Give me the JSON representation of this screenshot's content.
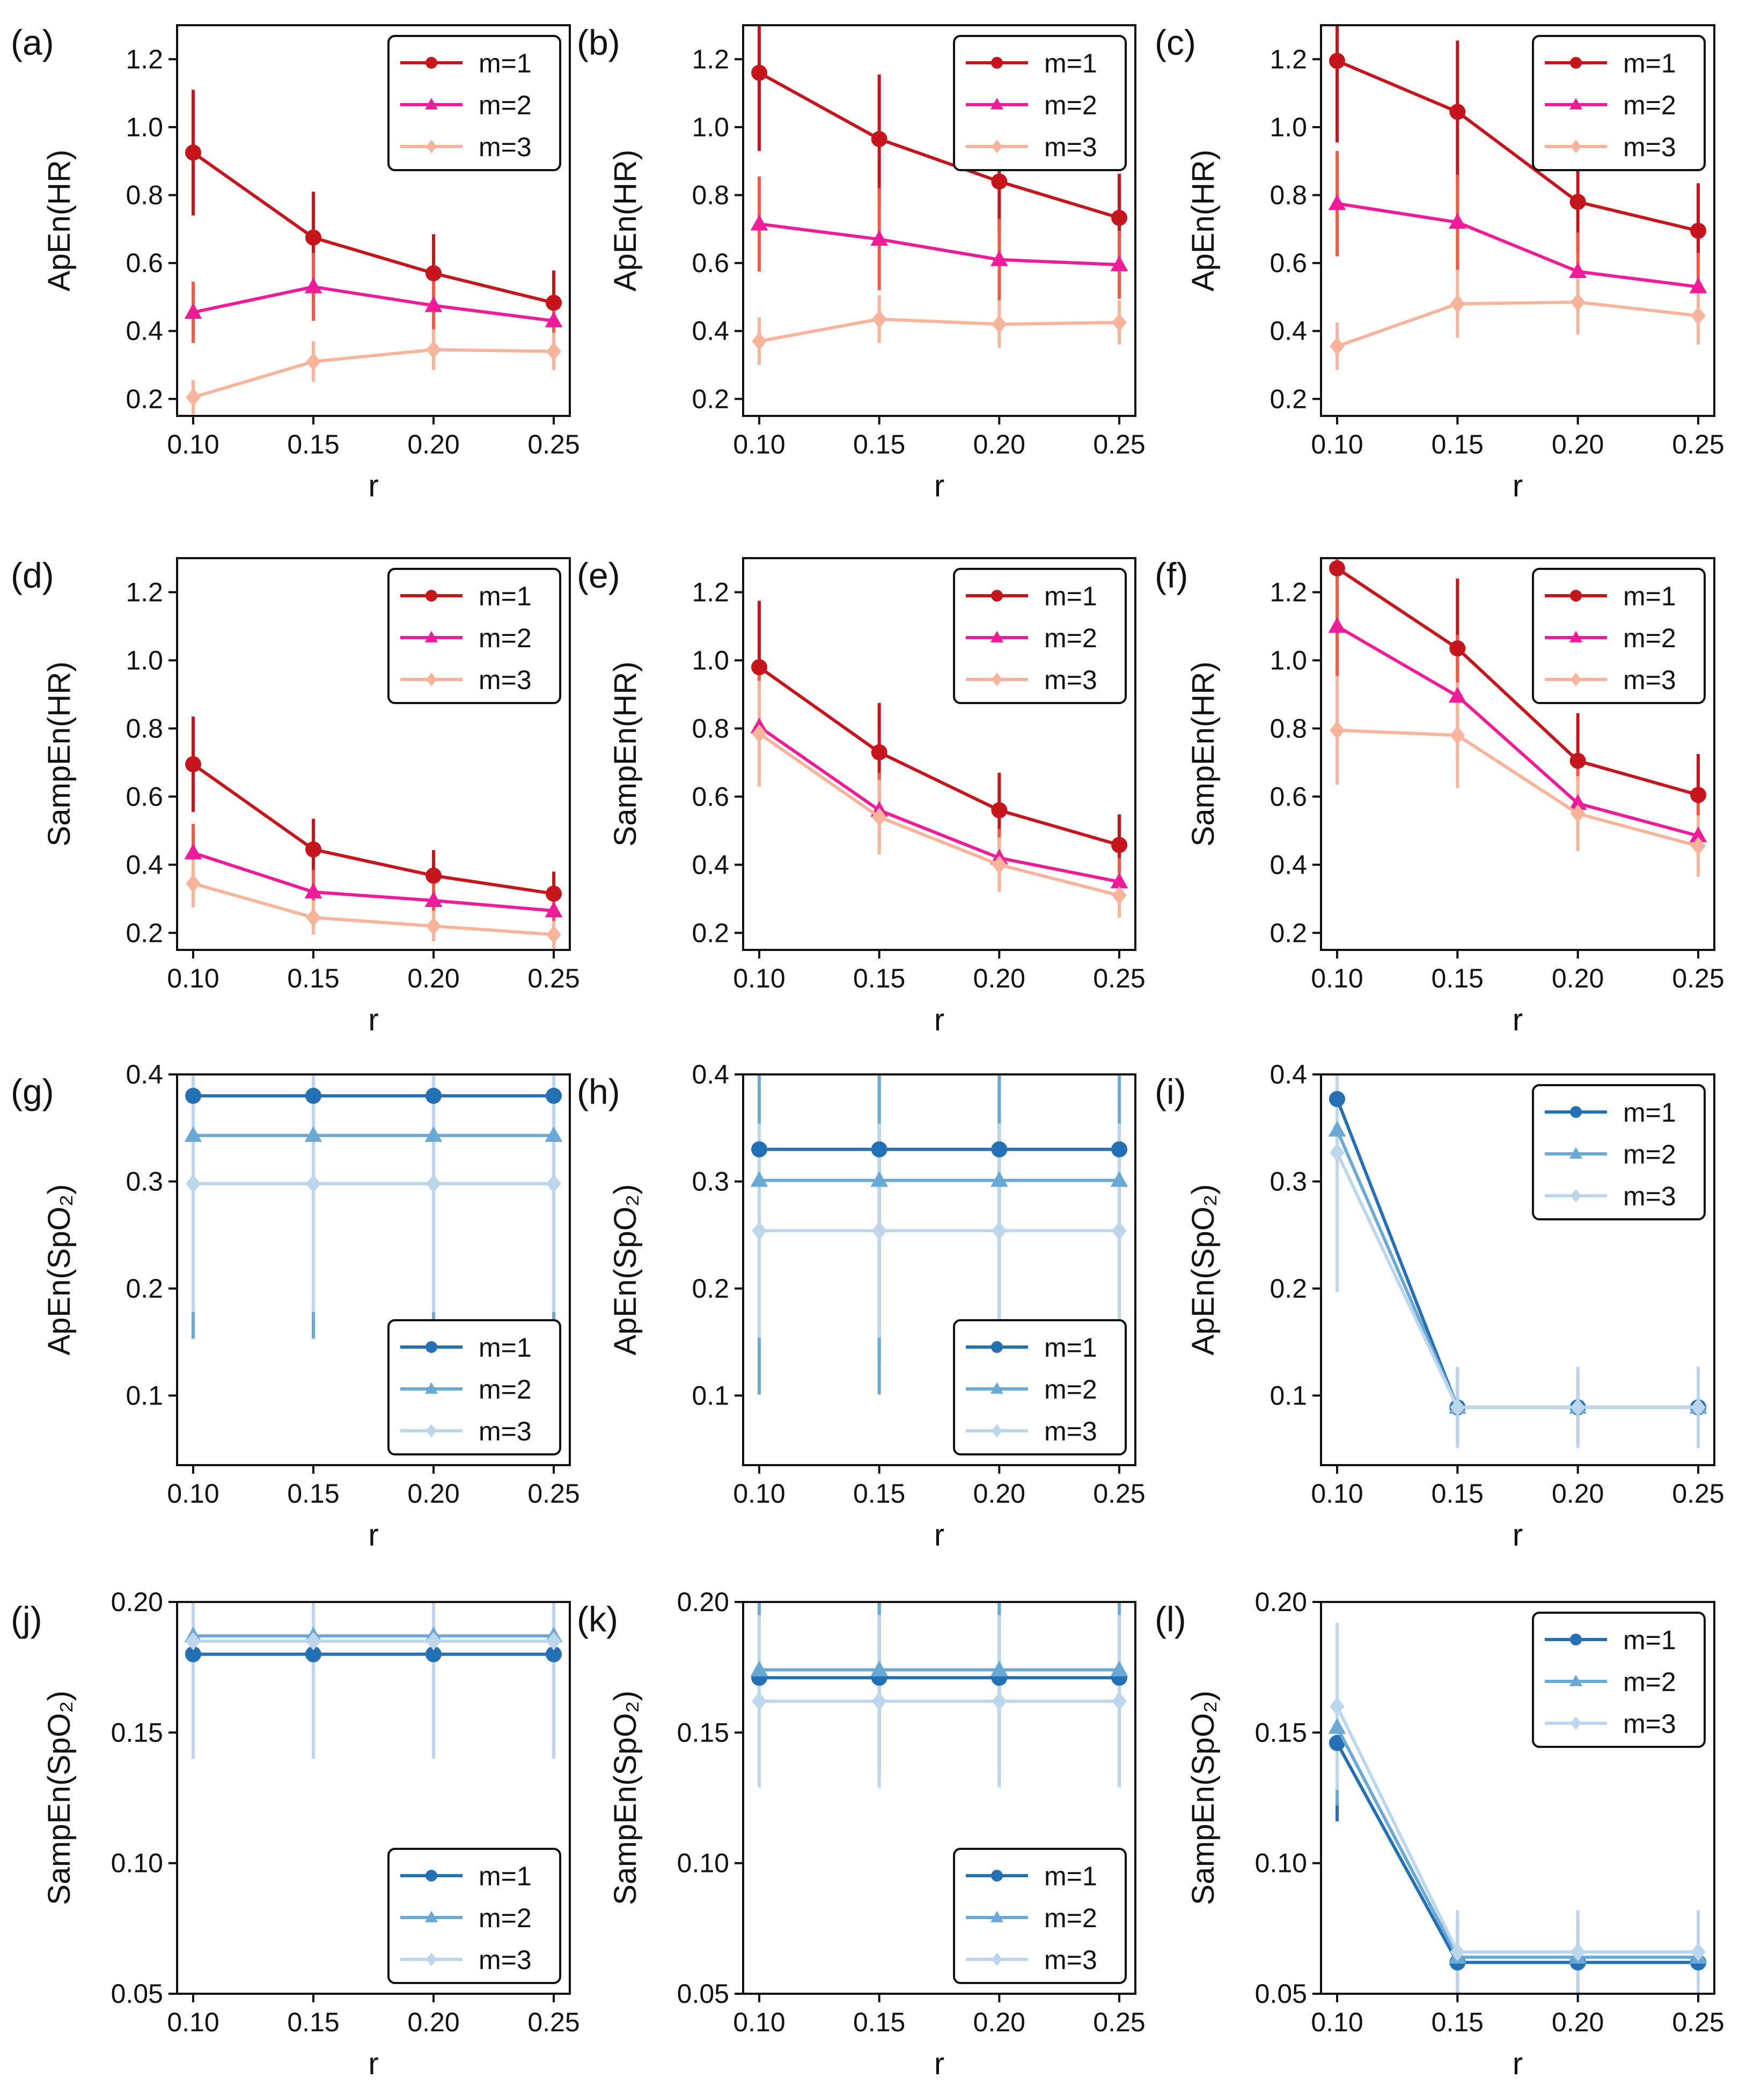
{
  "figure": {
    "colors": {
      "red_m1": "#c4161c",
      "red_m2": "#f01b98",
      "red_m3": "#f8b49b",
      "red_err2": "#f5593f",
      "blue_m1": "#2470b5",
      "blue_m2": "#6aa8d6",
      "blue_m3": "#bcd6ec"
    }
  },
  "chart_data": [
    {
      "id": "a",
      "label": "(a)",
      "type": "line",
      "ylabel": "ApEn(HR)",
      "xlabel": "r",
      "palette": "red",
      "x": [
        0.1,
        0.15,
        0.2,
        0.25
      ],
      "xticks": [
        "0.10",
        "0.15",
        "0.20",
        "0.25"
      ],
      "ylim": [
        0.15,
        1.3
      ],
      "yticks": [
        0.2,
        0.4,
        0.6,
        0.8,
        1.0,
        1.2
      ],
      "yticklabels": [
        "0.2",
        "0.4",
        "0.6",
        "0.8",
        "1.0",
        "1.2"
      ],
      "legend": "top-right",
      "series": [
        {
          "name": "m=1",
          "values": [
            0.925,
            0.675,
            0.57,
            0.483
          ],
          "err": [
            0.185,
            0.135,
            0.115,
            0.095
          ]
        },
        {
          "name": "m=2",
          "values": [
            0.455,
            0.53,
            0.475,
            0.43
          ],
          "err": [
            0.09,
            0.1,
            0.09,
            0.07
          ]
        },
        {
          "name": "m=3",
          "values": [
            0.205,
            0.31,
            0.345,
            0.34
          ],
          "err": [
            0.05,
            0.06,
            0.06,
            0.055
          ]
        }
      ]
    },
    {
      "id": "b",
      "label": "(b)",
      "type": "line",
      "ylabel": "ApEn(HR)",
      "xlabel": "r",
      "palette": "red",
      "x": [
        0.1,
        0.15,
        0.2,
        0.25
      ],
      "xticks": [
        "0.10",
        "0.15",
        "0.20",
        "0.25"
      ],
      "ylim": [
        0.15,
        1.3
      ],
      "yticks": [
        0.2,
        0.4,
        0.6,
        0.8,
        1.0,
        1.2
      ],
      "yticklabels": [
        "0.2",
        "0.4",
        "0.6",
        "0.8",
        "1.0",
        "1.2"
      ],
      "legend": "top-right",
      "series": [
        {
          "name": "m=1",
          "values": [
            1.16,
            0.965,
            0.84,
            0.733
          ],
          "err": [
            0.23,
            0.19,
            0.16,
            0.13
          ]
        },
        {
          "name": "m=2",
          "values": [
            0.715,
            0.67,
            0.61,
            0.595
          ],
          "err": [
            0.14,
            0.15,
            0.12,
            0.1
          ]
        },
        {
          "name": "m=3",
          "values": [
            0.37,
            0.435,
            0.42,
            0.425
          ],
          "err": [
            0.07,
            0.07,
            0.07,
            0.065
          ]
        }
      ]
    },
    {
      "id": "c",
      "label": "(c)",
      "type": "line",
      "ylabel": "ApEn(HR)",
      "xlabel": "r",
      "palette": "red",
      "x": [
        0.1,
        0.15,
        0.2,
        0.25
      ],
      "xticks": [
        "0.10",
        "0.15",
        "0.20",
        "0.25"
      ],
      "ylim": [
        0.15,
        1.3
      ],
      "yticks": [
        0.2,
        0.4,
        0.6,
        0.8,
        1.0,
        1.2
      ],
      "yticklabels": [
        "0.2",
        "0.4",
        "0.6",
        "0.8",
        "1.0",
        "1.2"
      ],
      "legend": "top-right",
      "series": [
        {
          "name": "m=1",
          "values": [
            1.195,
            1.045,
            0.78,
            0.695
          ],
          "err": [
            0.24,
            0.21,
            0.15,
            0.14
          ]
        },
        {
          "name": "m=2",
          "values": [
            0.775,
            0.72,
            0.575,
            0.53
          ],
          "err": [
            0.155,
            0.14,
            0.115,
            0.1
          ]
        },
        {
          "name": "m=3",
          "values": [
            0.355,
            0.48,
            0.485,
            0.445
          ],
          "err": [
            0.07,
            0.1,
            0.095,
            0.085
          ]
        }
      ]
    },
    {
      "id": "d",
      "label": "(d)",
      "type": "line",
      "ylabel": "SampEn(HR)",
      "xlabel": "r",
      "palette": "red",
      "x": [
        0.1,
        0.15,
        0.2,
        0.25
      ],
      "xticks": [
        "0.10",
        "0.15",
        "0.20",
        "0.25"
      ],
      "ylim": [
        0.15,
        1.3
      ],
      "yticks": [
        0.2,
        0.4,
        0.6,
        0.8,
        1.0,
        1.2
      ],
      "yticklabels": [
        "0.2",
        "0.4",
        "0.6",
        "0.8",
        "1.0",
        "1.2"
      ],
      "legend": "top-right",
      "series": [
        {
          "name": "m=1",
          "values": [
            0.695,
            0.445,
            0.368,
            0.315
          ],
          "err": [
            0.14,
            0.09,
            0.075,
            0.065
          ]
        },
        {
          "name": "m=2",
          "values": [
            0.435,
            0.32,
            0.295,
            0.265
          ],
          "err": [
            0.085,
            0.065,
            0.06,
            0.05
          ]
        },
        {
          "name": "m=3",
          "values": [
            0.345,
            0.245,
            0.22,
            0.195
          ],
          "err": [
            0.07,
            0.05,
            0.045,
            0.04
          ]
        }
      ]
    },
    {
      "id": "e",
      "label": "(e)",
      "type": "line",
      "ylabel": "SampEn(HR)",
      "xlabel": "r",
      "palette": "red",
      "x": [
        0.1,
        0.15,
        0.2,
        0.25
      ],
      "xticks": [
        "0.10",
        "0.15",
        "0.20",
        "0.25"
      ],
      "ylim": [
        0.15,
        1.3
      ],
      "yticks": [
        0.2,
        0.4,
        0.6,
        0.8,
        1.0,
        1.2
      ],
      "yticklabels": [
        "0.2",
        "0.4",
        "0.6",
        "0.8",
        "1.0",
        "1.2"
      ],
      "legend": "top-right",
      "series": [
        {
          "name": "m=1",
          "values": [
            0.98,
            0.73,
            0.56,
            0.458
          ],
          "err": [
            0.195,
            0.145,
            0.11,
            0.09
          ]
        },
        {
          "name": "m=2",
          "values": [
            0.805,
            0.56,
            0.42,
            0.35
          ],
          "err": [
            0.16,
            0.11,
            0.085,
            0.07
          ]
        },
        {
          "name": "m=3",
          "values": [
            0.785,
            0.54,
            0.4,
            0.31
          ],
          "err": [
            0.155,
            0.11,
            0.08,
            0.065
          ]
        }
      ]
    },
    {
      "id": "f",
      "label": "(f)",
      "type": "line",
      "ylabel": "SampEn(HR)",
      "xlabel": "r",
      "palette": "red",
      "x": [
        0.1,
        0.15,
        0.2,
        0.25
      ],
      "xticks": [
        "0.10",
        "0.15",
        "0.20",
        "0.25"
      ],
      "ylim": [
        0.15,
        1.3
      ],
      "yticks": [
        0.2,
        0.4,
        0.6,
        0.8,
        1.0,
        1.2
      ],
      "yticklabels": [
        "0.2",
        "0.4",
        "0.6",
        "0.8",
        "1.0",
        "1.2"
      ],
      "legend": "top-right",
      "series": [
        {
          "name": "m=1",
          "values": [
            1.27,
            1.035,
            0.705,
            0.605
          ],
          "err": [
            0.25,
            0.205,
            0.14,
            0.12
          ]
        },
        {
          "name": "m=2",
          "values": [
            1.1,
            0.895,
            0.58,
            0.485
          ],
          "err": [
            0.22,
            0.18,
            0.115,
            0.095
          ]
        },
        {
          "name": "m=3",
          "values": [
            0.795,
            0.78,
            0.55,
            0.455
          ],
          "err": [
            0.16,
            0.155,
            0.11,
            0.09
          ]
        }
      ]
    },
    {
      "id": "g",
      "label": "(g)",
      "type": "line",
      "ylabel": "ApEn(SpO₂)",
      "xlabel": "r",
      "palette": "blue",
      "x": [
        0.1,
        0.15,
        0.2,
        0.25
      ],
      "xticks": [
        "0.10",
        "0.15",
        "0.20",
        "0.25"
      ],
      "ylim": [
        0.035,
        0.4
      ],
      "yticks": [
        0.1,
        0.2,
        0.3,
        0.4
      ],
      "yticklabels": [
        "0.1",
        "0.2",
        "0.3",
        "0.4"
      ],
      "legend": "bottom-right",
      "series": [
        {
          "name": "m=1",
          "values": [
            0.38,
            0.38,
            0.38,
            0.38
          ],
          "err": [
            0.2,
            0.2,
            0.2,
            0.2
          ]
        },
        {
          "name": "m=2",
          "values": [
            0.343,
            0.343,
            0.343,
            0.343
          ],
          "err": [
            0.19,
            0.19,
            0.19,
            0.19
          ]
        },
        {
          "name": "m=3",
          "values": [
            0.298,
            0.298,
            0.298,
            0.298
          ],
          "err": [
            0.12,
            0.12,
            0.12,
            0.12
          ]
        }
      ]
    },
    {
      "id": "h",
      "label": "(h)",
      "type": "line",
      "ylabel": "ApEn(SpO₂)",
      "xlabel": "r",
      "palette": "blue",
      "x": [
        0.1,
        0.15,
        0.2,
        0.25
      ],
      "xticks": [
        "0.10",
        "0.15",
        "0.20",
        "0.25"
      ],
      "ylim": [
        0.035,
        0.4
      ],
      "yticks": [
        0.1,
        0.2,
        0.3,
        0.4
      ],
      "yticklabels": [
        "0.1",
        "0.2",
        "0.3",
        "0.4"
      ],
      "legend": "bottom-right",
      "series": [
        {
          "name": "m=1",
          "values": [
            0.33,
            0.33,
            0.33,
            0.33
          ],
          "err": [
            0.2,
            0.2,
            0.2,
            0.2
          ]
        },
        {
          "name": "m=2",
          "values": [
            0.301,
            0.301,
            0.301,
            0.301
          ],
          "err": [
            0.2,
            0.2,
            0.2,
            0.2
          ]
        },
        {
          "name": "m=3",
          "values": [
            0.254,
            0.254,
            0.254,
            0.254
          ],
          "err": [
            0.1,
            0.1,
            0.1,
            0.1
          ]
        }
      ]
    },
    {
      "id": "i",
      "label": "(i)",
      "type": "line",
      "ylabel": "ApEn(SpO₂)",
      "xlabel": "r",
      "palette": "blue",
      "x": [
        0.1,
        0.15,
        0.2,
        0.25
      ],
      "xticks": [
        "0.10",
        "0.15",
        "0.20",
        "0.25"
      ],
      "ylim": [
        0.035,
        0.4
      ],
      "yticks": [
        0.1,
        0.2,
        0.3,
        0.4
      ],
      "yticklabels": [
        "0.1",
        "0.2",
        "0.3",
        "0.4"
      ],
      "legend": "top-right",
      "series": [
        {
          "name": "m=1",
          "values": [
            0.377,
            0.089,
            0.089,
            0.089
          ],
          "err": [
            0.07,
            0.035,
            0.035,
            0.035
          ]
        },
        {
          "name": "m=2",
          "values": [
            0.348,
            0.089,
            0.089,
            0.089
          ],
          "err": [
            0.07,
            0.035,
            0.035,
            0.035
          ]
        },
        {
          "name": "m=3",
          "values": [
            0.327,
            0.089,
            0.089,
            0.089
          ],
          "err": [
            0.13,
            0.038,
            0.038,
            0.038
          ]
        }
      ]
    },
    {
      "id": "j",
      "label": "(j)",
      "type": "line",
      "ylabel": "SampEn(SpO₂)",
      "xlabel": "r",
      "palette": "blue",
      "x": [
        0.1,
        0.15,
        0.2,
        0.25
      ],
      "xticks": [
        "0.10",
        "0.15",
        "0.20",
        "0.25"
      ],
      "ylim": [
        0.05,
        0.2
      ],
      "yticks": [
        0.05,
        0.1,
        0.15,
        0.2
      ],
      "yticklabels": [
        "0.05",
        "0.10",
        "0.15",
        "0.20"
      ],
      "legend": "bottom-right",
      "series": [
        {
          "name": "m=1",
          "values": [
            0.18,
            0.18,
            0.18,
            0.18
          ],
          "err": [
            0.035,
            0.035,
            0.035,
            0.035
          ]
        },
        {
          "name": "m=2",
          "values": [
            0.187,
            0.187,
            0.187,
            0.187
          ],
          "err": [
            0.04,
            0.04,
            0.04,
            0.04
          ]
        },
        {
          "name": "m=3",
          "values": [
            0.185,
            0.185,
            0.185,
            0.185
          ],
          "err": [
            0.045,
            0.045,
            0.045,
            0.045
          ]
        }
      ]
    },
    {
      "id": "k",
      "label": "(k)",
      "type": "line",
      "ylabel": "SampEn(SpO₂)",
      "xlabel": "r",
      "palette": "blue",
      "x": [
        0.1,
        0.15,
        0.2,
        0.25
      ],
      "xticks": [
        "0.10",
        "0.15",
        "0.20",
        "0.25"
      ],
      "ylim": [
        0.05,
        0.2
      ],
      "yticks": [
        0.05,
        0.1,
        0.15,
        0.2
      ],
      "yticklabels": [
        "0.05",
        "0.10",
        "0.15",
        "0.20"
      ],
      "legend": "bottom-right",
      "series": [
        {
          "name": "m=1",
          "values": [
            0.171,
            0.171,
            0.171,
            0.171
          ],
          "err": [
            0.035,
            0.035,
            0.035,
            0.035
          ]
        },
        {
          "name": "m=2",
          "values": [
            0.174,
            0.174,
            0.174,
            0.174
          ],
          "err": [
            0.04,
            0.04,
            0.04,
            0.04
          ]
        },
        {
          "name": "m=3",
          "values": [
            0.162,
            0.162,
            0.162,
            0.162
          ],
          "err": [
            0.033,
            0.033,
            0.033,
            0.033
          ]
        }
      ]
    },
    {
      "id": "l",
      "label": "(l)",
      "type": "line",
      "ylabel": "SampEn(SpO₂)",
      "xlabel": "r",
      "palette": "blue",
      "x": [
        0.1,
        0.15,
        0.2,
        0.25
      ],
      "xticks": [
        "0.10",
        "0.15",
        "0.20",
        "0.25"
      ],
      "ylim": [
        0.05,
        0.2
      ],
      "yticks": [
        0.05,
        0.1,
        0.15,
        0.2
      ],
      "yticklabels": [
        "0.05",
        "0.10",
        "0.15",
        "0.20"
      ],
      "legend": "top-right",
      "series": [
        {
          "name": "m=1",
          "values": [
            0.146,
            0.062,
            0.062,
            0.062
          ],
          "err": [
            0.03,
            0.015,
            0.015,
            0.015
          ]
        },
        {
          "name": "m=2",
          "values": [
            0.152,
            0.064,
            0.064,
            0.064
          ],
          "err": [
            0.03,
            0.015,
            0.015,
            0.015
          ]
        },
        {
          "name": "m=3",
          "values": [
            0.16,
            0.066,
            0.066,
            0.066
          ],
          "err": [
            0.032,
            0.016,
            0.016,
            0.016
          ]
        }
      ]
    }
  ]
}
